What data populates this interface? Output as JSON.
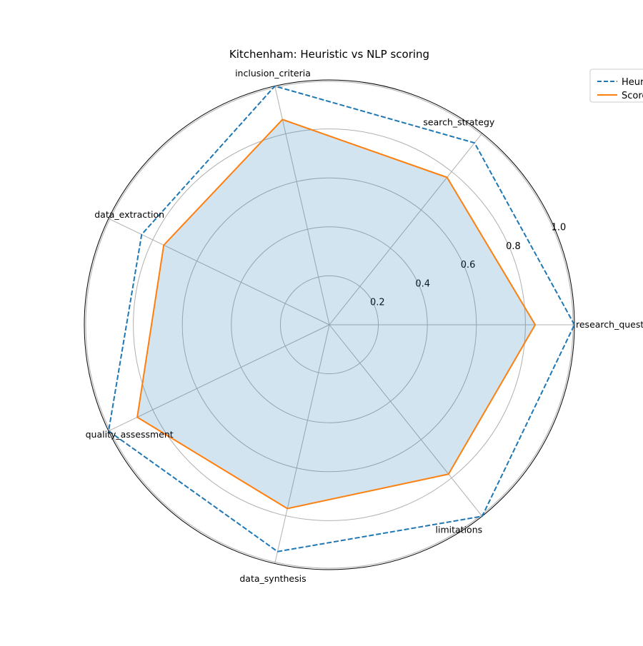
{
  "chart_data": {
    "type": "radar",
    "title": "Kitchenham: Heuristic vs NLP scoring",
    "categories": [
      "research_question",
      "search_strategy",
      "inclusion_criteria",
      "data_extraction",
      "quality_assessment",
      "data_synthesis",
      "limitations"
    ],
    "series": [
      {
        "name": "Heuristic",
        "values": [
          1.0,
          0.95,
          1.0,
          0.85,
          1.0,
          0.95,
          1.0
        ],
        "color": "#1f77b4",
        "line_style": "dashed"
      },
      {
        "name": "Score",
        "values": [
          0.84,
          0.77,
          0.86,
          0.75,
          0.87,
          0.77,
          0.78
        ],
        "color": "#ff7f0e",
        "line_style": "solid",
        "fill": "#1f77b4"
      }
    ],
    "radial_ticks": [
      "0.2",
      "0.4",
      "0.6",
      "0.8",
      "1.0"
    ],
    "radial_tick_values": [
      0.2,
      0.4,
      0.6,
      0.8,
      1.0
    ],
    "rmax": 1.0,
    "grid": true,
    "legend_position": "top-right"
  }
}
